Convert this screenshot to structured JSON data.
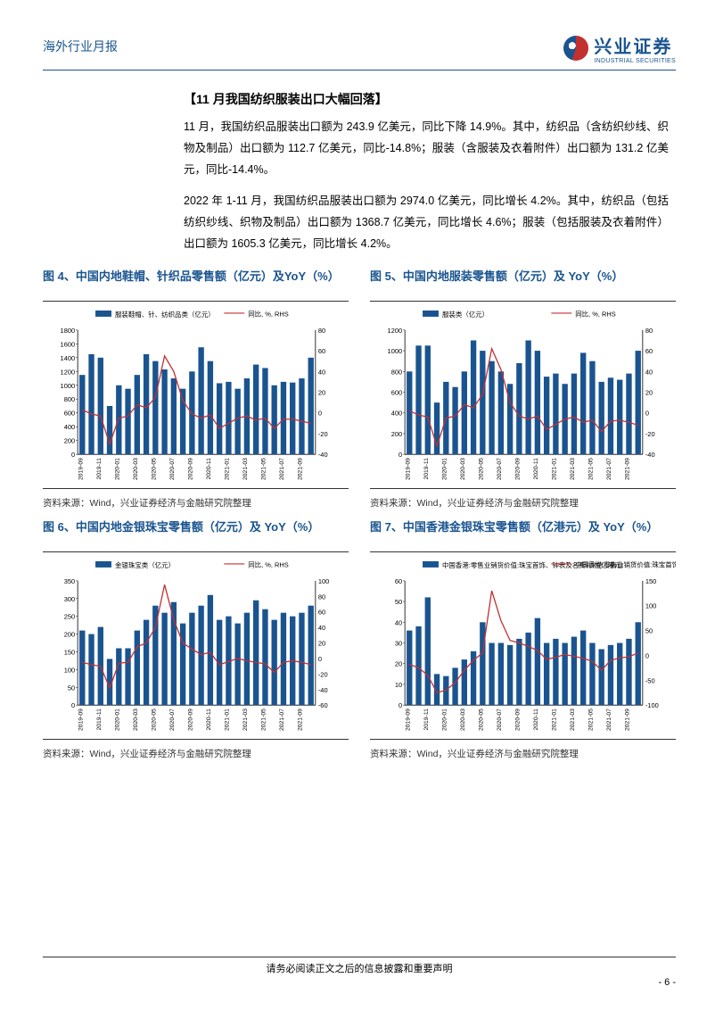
{
  "header": {
    "left": "海外行业月报",
    "brand": "兴业证券",
    "brand_sub": "INDUSTRIAL SECURITIES"
  },
  "section_title": "【11 月我国纺织服装出口大幅回落】",
  "para1": "11 月，我国纺织品服装出口额为 243.9 亿美元，同比下降 14.9%。其中，纺织品（含纺织纱线、织物及制品）出口额为 112.7 亿美元，同比-14.8%；服装（含服装及衣着附件）出口额为 131.2 亿美元，同比-14.4%。",
  "para2": "2022 年 1-11 月，我国纺织品服装出口额为 2974.0 亿美元，同比增长 4.2%。其中，纺织品（包括纺织纱线、织物及制品）出口额为 1368.7 亿美元，同比增长 4.6%；服装（包括服装及衣着附件）出口额为 1605.3 亿美元，同比增长 4.2%。",
  "x_labels": [
    "2019-09",
    "2019-11",
    "2020-01",
    "2020-03",
    "2020-05",
    "2020-07",
    "2020-09",
    "2020-11",
    "2021-01",
    "2021-03",
    "2021-05",
    "2021-07",
    "2021-09",
    "2021-11",
    "2022-01",
    "2022-03",
    "2022-05",
    "2022-07",
    "2022-09",
    "2022-11"
  ],
  "charts": [
    {
      "title": "图 4、中国内地鞋帽、针织品零售额（亿元）及YoY（%）",
      "legend_bar": "服装鞋帽、针、纺织品类（亿元）",
      "legend_line": "同比, %, RHS",
      "bar_color": "#1a5490",
      "line_color": "#c23030",
      "ymax": 1800,
      "ystep": 200,
      "y2min": -40,
      "y2max": 80,
      "y2step": 20,
      "bars": [
        1150,
        1450,
        1400,
        700,
        1000,
        950,
        1150,
        1450,
        1350,
        1230,
        1100,
        950,
        1200,
        1550,
        1350,
        1030,
        1050,
        950,
        1100,
        1300,
        1250,
        1000,
        1050,
        1040,
        1100,
        1400
      ],
      "line": [
        3,
        -1,
        -3,
        -30,
        -5,
        -3,
        8,
        5,
        15,
        55,
        40,
        12,
        -1,
        -5,
        -2,
        -15,
        -10,
        -5,
        -3,
        -7,
        -5,
        -15,
        -6,
        -6,
        -8,
        -10
      ],
      "source": "资料来源：Wind，兴业证券经济与金融研究院整理"
    },
    {
      "title": "图 5、中国内地服装零售额（亿元）及 YoY（%）",
      "legend_bar": "服装类（亿元）",
      "legend_line": "同比, %, RHS",
      "bar_color": "#1a5490",
      "line_color": "#c23030",
      "ymax": 1200,
      "ystep": 200,
      "y2min": -40,
      "y2max": 80,
      "y2step": 20,
      "bars": [
        800,
        1050,
        1050,
        500,
        700,
        650,
        800,
        1100,
        1000,
        900,
        800,
        680,
        880,
        1100,
        1000,
        750,
        780,
        680,
        780,
        980,
        900,
        700,
        740,
        720,
        780,
        1000
      ],
      "line": [
        2,
        -2,
        -4,
        -32,
        -5,
        -3,
        8,
        5,
        18,
        62,
        42,
        10,
        -3,
        -6,
        -3,
        -16,
        -11,
        -6,
        -4,
        -9,
        -7,
        -18,
        -8,
        -7,
        -9,
        -12
      ],
      "source": "资料来源：Wind，兴业证券经济与金融研究院整理"
    },
    {
      "title": "图 6、中国内地金银珠宝零售额（亿元）及 YoY（%）",
      "legend_bar": "金银珠宝类（亿元）",
      "legend_line": "同比, %, RHS",
      "bar_color": "#1a5490",
      "line_color": "#c23030",
      "ymax": 350,
      "ystep": 50,
      "y2min": -60,
      "y2max": 100,
      "y2step": 20,
      "bars": [
        210,
        200,
        220,
        130,
        160,
        160,
        210,
        240,
        280,
        260,
        290,
        230,
        260,
        280,
        310,
        240,
        250,
        230,
        260,
        295,
        270,
        240,
        260,
        250,
        260,
        280
      ],
      "line": [
        -5,
        -8,
        -10,
        -38,
        -6,
        -5,
        15,
        20,
        40,
        95,
        50,
        20,
        12,
        5,
        8,
        -8,
        -4,
        0,
        -3,
        -5,
        -7,
        -18,
        -5,
        -3,
        -5,
        -8
      ],
      "source": "资料来源：Wind，兴业证券经济与金融研究院整理"
    },
    {
      "title": "图 7、中国香港金银珠宝零售额（亿港元）及 YoY（%）",
      "legend_bar": "中国香港:零售业销货价值:珠宝首饰、钟表及名贵礼物(亿港元)",
      "legend_line": "中国香港:零售业销货价值:珠宝首饰、钟表及名贵礼物:同比(%),RHS",
      "bar_color": "#1a5490",
      "line_color": "#c23030",
      "ymax": 60,
      "ystep": 10,
      "y2min": -100,
      "y2max": 150,
      "y2step": 50,
      "bars": [
        36,
        38,
        52,
        15,
        14,
        18,
        22,
        26,
        40,
        30,
        30,
        29,
        32,
        35,
        42,
        30,
        32,
        30,
        33,
        36,
        30,
        27,
        29,
        30,
        32,
        40
      ],
      "line": [
        -18,
        -25,
        -40,
        -75,
        -70,
        -55,
        -30,
        -10,
        5,
        130,
        70,
        30,
        25,
        18,
        10,
        -8,
        -4,
        2,
        -2,
        -6,
        -12,
        -30,
        -10,
        -5,
        -3,
        5
      ],
      "source": "资料来源：Wind，兴业证券经济与金融研究院整理"
    }
  ],
  "footer": "请务必阅读正文之后的信息披露和重要声明",
  "page_no": "- 6 -"
}
